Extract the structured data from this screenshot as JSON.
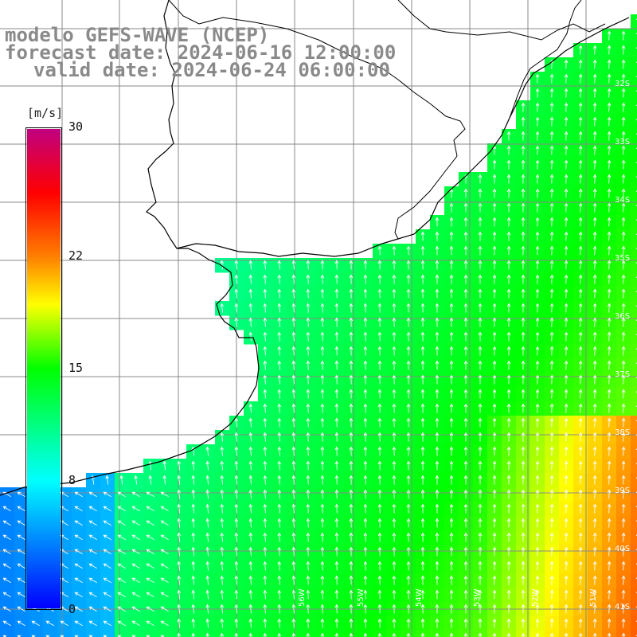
{
  "header": {
    "line1": "modelo GEFS-WAVE (NCEP)",
    "line2": "forecast date: 2024-06-16 12:00:00",
    "line3": "valid date: 2024-06-24 06:00:00"
  },
  "colorbar": {
    "unit": "[m/s]",
    "ticks": [
      {
        "value": 30,
        "label": "30"
      },
      {
        "value": 22,
        "label": "22"
      },
      {
        "value": 15,
        "label": "15"
      },
      {
        "value": 8,
        "label": "8"
      },
      {
        "value": 0,
        "label": "0"
      }
    ],
    "colors": [
      {
        "value": 0,
        "color": "#0000ff"
      },
      {
        "value": 8,
        "color": "#00ffff"
      },
      {
        "value": 15,
        "color": "#00ff00"
      },
      {
        "value": 19,
        "color": "#ffff00"
      },
      {
        "value": 22,
        "color": "#ff8000"
      },
      {
        "value": 26,
        "color": "#ff0000"
      },
      {
        "value": 30,
        "color": "#c00080"
      }
    ]
  },
  "map": {
    "lat_labels": [
      "32S",
      "33S",
      "34S",
      "35S",
      "36S",
      "37S",
      "38S",
      "39S",
      "40S",
      "41S"
    ],
    "lon_labels": [
      "56W",
      "55W",
      "54W",
      "53W",
      "52W",
      "51W"
    ],
    "wind_arrows": "white",
    "land_color": "#ffffff",
    "grid_color": "#888888"
  }
}
